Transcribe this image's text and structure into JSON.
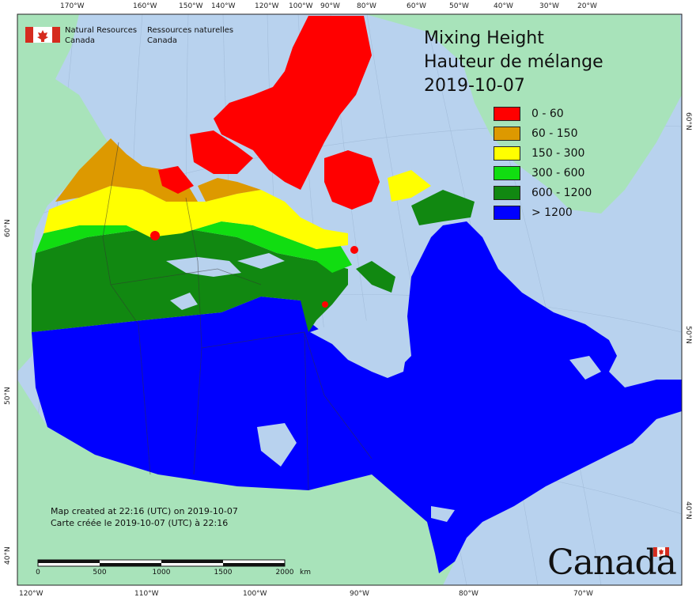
{
  "map": {
    "title": "Mixing Height",
    "title_fr": "Hauteur de mélange",
    "date": "2019-10-07",
    "colors": {
      "ocean": "#b8d2ee",
      "land_other": "#a8e3ba",
      "grid": "#c8d8e8"
    },
    "legend": [
      {
        "label": "0 - 60",
        "color": "#ff0000"
      },
      {
        "label": "60 - 150",
        "color": "#dd9900"
      },
      {
        "label": "150 - 300",
        "color": "#ffff00"
      },
      {
        "label": "300 - 600",
        "color": "#11dd11"
      },
      {
        "label": "600 - 1200",
        "color": "#118811"
      },
      {
        "label": "> 1200",
        "color": "#0000ff"
      }
    ],
    "agency": {
      "en_line1": "Natural Resources",
      "en_line2": "Canada",
      "fr_line1": "Ressources naturelles",
      "fr_line2": "Canada"
    },
    "credit": {
      "en": "Map created at 22:16 (UTC) on 2019-10-07",
      "fr": "Carte créée le 2019-10-07 (UTC) à 22:16"
    },
    "scale": {
      "ticks": [
        "0",
        "500",
        "1000",
        "1500",
        "2000"
      ],
      "unit": "km"
    },
    "wordmark": "Canada",
    "graticule": {
      "top": [
        "170°W",
        "160°W",
        "150°W",
        "140°W",
        "120°W",
        "100°W",
        "90°W",
        "80°W",
        "60°W",
        "50°W",
        "40°W",
        "30°W",
        "20°W"
      ],
      "bottom": [
        "120°W",
        "110°W",
        "100°W",
        "90°W",
        "80°W",
        "70°W"
      ],
      "left": [
        "60°N",
        "50°N",
        "40°N"
      ],
      "right": [
        "60°N",
        "50°N",
        "40°N"
      ]
    }
  }
}
